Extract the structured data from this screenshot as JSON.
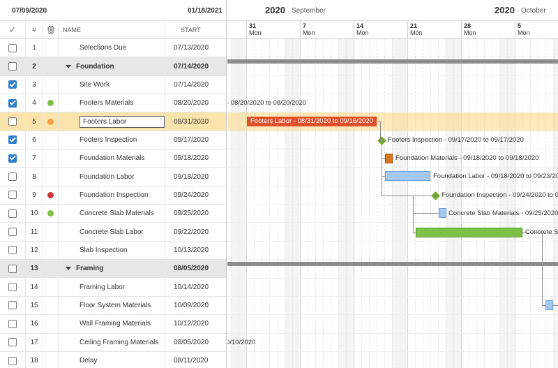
{
  "grid": {
    "date_from": "07/09/2020",
    "date_to": "01/18/2021",
    "headers": {
      "check": "✓",
      "num": "#",
      "name": "NAME",
      "start": "START"
    },
    "rows": [
      {
        "num": "1",
        "name": "Selections Due",
        "start": "07/13/2020",
        "checked": false,
        "dot": "",
        "type": "task"
      },
      {
        "num": "2",
        "name": "Foundation",
        "start": "07/14/2020",
        "checked": false,
        "dot": "",
        "type": "summary"
      },
      {
        "num": "3",
        "name": "Site Work",
        "start": "07/14/2020",
        "checked": true,
        "dot": "",
        "type": "task"
      },
      {
        "num": "4",
        "name": "Footers Materials",
        "start": "08/20/2020",
        "checked": true,
        "dot": "#7cc048",
        "type": "task"
      },
      {
        "num": "5",
        "name": "Footers Labor",
        "start": "08/31/2020",
        "checked": false,
        "dot": "#f5a049",
        "type": "task",
        "selected": true
      },
      {
        "num": "6",
        "name": "Footers Inspection",
        "start": "09/17/2020",
        "checked": true,
        "dot": "",
        "type": "task"
      },
      {
        "num": "7",
        "name": "Foundation Materials",
        "start": "09/18/2020",
        "checked": true,
        "dot": "",
        "type": "task"
      },
      {
        "num": "8",
        "name": "Foundation Labor",
        "start": "09/18/2020",
        "checked": false,
        "dot": "",
        "type": "task"
      },
      {
        "num": "9",
        "name": "Foundation Inspection",
        "start": "09/24/2020",
        "checked": false,
        "dot": "#c8343a",
        "type": "task"
      },
      {
        "num": "10",
        "name": "Concrete Slab Materials",
        "start": "09/25/2020",
        "checked": false,
        "dot": "#7cc048",
        "type": "task"
      },
      {
        "num": "11",
        "name": "Concrete Slab Labor",
        "start": "09/22/2020",
        "checked": false,
        "dot": "",
        "type": "task"
      },
      {
        "num": "12",
        "name": "Slab Inspection",
        "start": "10/13/2020",
        "checked": false,
        "dot": "",
        "type": "task"
      },
      {
        "num": "13",
        "name": "Framing",
        "start": "08/05/2020",
        "checked": false,
        "dot": "",
        "type": "summary"
      },
      {
        "num": "14",
        "name": "Framing Labor",
        "start": "10/14/2020",
        "checked": false,
        "dot": "",
        "type": "task"
      },
      {
        "num": "15",
        "name": "Floor System Materials",
        "start": "10/09/2020",
        "checked": false,
        "dot": "",
        "type": "task"
      },
      {
        "num": "16",
        "name": "Wall Framing Materials",
        "start": "10/12/2020",
        "checked": false,
        "dot": "",
        "type": "task"
      },
      {
        "num": "17",
        "name": "Ceiling Framing Materials",
        "start": "08/05/2020",
        "checked": false,
        "dot": "",
        "type": "task"
      },
      {
        "num": "18",
        "name": "Delay",
        "start": "08/11/2020",
        "checked": false,
        "dot": "",
        "type": "task"
      }
    ]
  },
  "timeline": {
    "year_1": "2020",
    "month_1": "September",
    "year_2": "2020",
    "month_2": "October",
    "weeks": [
      {
        "day": "31",
        "dow": "Mon"
      },
      {
        "day": "7",
        "dow": "Mon"
      },
      {
        "day": "14",
        "dow": "Mon"
      },
      {
        "day": "21",
        "dow": "Mon"
      },
      {
        "day": "28",
        "dow": "Mon"
      },
      {
        "day": "5",
        "dow": "Mon"
      }
    ],
    "labels": {
      "footers_materials": "- 08/20/2020 to 08/20/2020",
      "footers_labor": "Footers Labor - 08/31/2020 to 09/16/2020",
      "footers_inspection": "Footers Inspection - 09/17/2020 to 09/17/2020",
      "foundation_materials": "Foundation Materials - 09/18/2020 to 09/18/2020",
      "foundation_labor": "Foundation Labor - 09/18/2020 to 09/23/2020",
      "foundation_inspection": "Foundation Inspection - 09/24/2020 to 0",
      "slab_materials": "Concrete Slab Materials - 09/25/2020",
      "slab_labor": "Concrete S",
      "ceiling_framing": "0/10/2020"
    },
    "colors": {
      "footers_labor": "#e0512b",
      "milestone": "#74a833",
      "foundation_materials": "#d9751d",
      "blue_bar": "#a4c8ef",
      "slab_labor": "#7cc048",
      "summary": "#8c8c8c",
      "selected_row": "#fbd98c"
    }
  }
}
